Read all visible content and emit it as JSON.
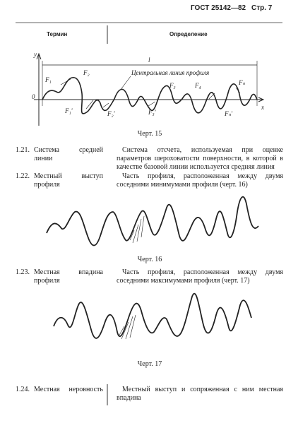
{
  "header": {
    "standard": "ГОСТ 25142—82",
    "page": "Стр. 7"
  },
  "table_header": {
    "term": "Термин",
    "definition": "Определение"
  },
  "figures": [
    {
      "labels": [
        "y",
        "l",
        "F₁",
        "F₂",
        "Центральная линия профиля",
        "F₃",
        "F₄",
        "Fₙ",
        "0",
        "x",
        "F₁'",
        "F₂'",
        "F₃'",
        "Fₙ'"
      ],
      "caption": "Черт. 15"
    },
    {
      "caption": "Черт. 16"
    },
    {
      "caption": "Черт. 17"
    }
  ],
  "entries": [
    {
      "number": "1.21.",
      "term": "Система средней линии",
      "definition": "Система отсчета, используемая при оценке параметров шероховатости поверхности, в которой в качестве базовой линии используется средняя линия"
    },
    {
      "number": "1.22.",
      "term": "Местный выступ профиля",
      "definition": "Часть профиля, расположенная между двумя соседними минимумами профиля (черт. 16)"
    },
    {
      "number": "1.23.",
      "term": "Местная впадина профиля",
      "definition": "Часть профиля, расположенная между двумя соседними максимумами профиля (черт. 17)"
    },
    {
      "number": "1.24.",
      "term": "Местная неровность",
      "definition": "Местный выступ и сопряженная с ним местная впадина"
    }
  ]
}
